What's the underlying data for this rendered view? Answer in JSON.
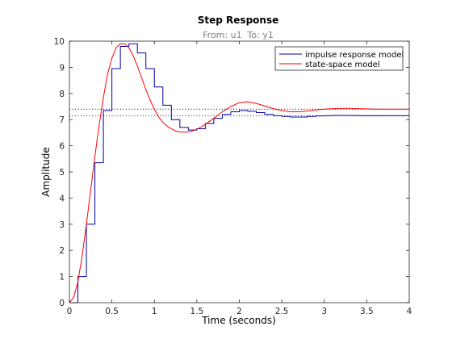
{
  "chart_data": {
    "type": "line",
    "title": "Step Response",
    "subtitle": "From: u1  To: y1",
    "xlabel": "Time (seconds)",
    "ylabel": "Amplitude",
    "xlim": [
      0,
      4
    ],
    "ylim": [
      0,
      10
    ],
    "xticks": [
      "0",
      "0.5",
      "1",
      "1.5",
      "2",
      "2.5",
      "3",
      "3.5",
      "4"
    ],
    "yticks": [
      "0",
      "1",
      "2",
      "3",
      "4",
      "5",
      "6",
      "7",
      "8",
      "9",
      "10"
    ],
    "grid": false,
    "legend_position": "top-right",
    "series": [
      {
        "name": "impulse response model",
        "color": "#0000aa",
        "style": "step",
        "x": [
          0,
          0.1,
          0.2,
          0.3,
          0.4,
          0.5,
          0.6,
          0.7,
          0.8,
          0.9,
          1.0,
          1.1,
          1.2,
          1.3,
          1.4,
          1.5,
          1.6,
          1.7,
          1.8,
          1.9,
          2.0,
          2.1,
          2.2,
          2.3,
          2.4,
          2.5,
          2.6,
          2.7,
          2.8,
          2.9,
          3.0,
          3.1,
          3.2,
          3.3,
          3.4,
          3.5,
          3.6,
          3.7,
          3.8,
          3.9,
          4.0
        ],
        "y": [
          0,
          1.0,
          3.0,
          5.35,
          7.35,
          8.95,
          9.8,
          9.9,
          9.55,
          8.95,
          8.25,
          7.55,
          7.0,
          6.7,
          6.6,
          6.65,
          6.85,
          7.05,
          7.2,
          7.3,
          7.35,
          7.32,
          7.27,
          7.2,
          7.15,
          7.12,
          7.1,
          7.1,
          7.12,
          7.14,
          7.15,
          7.16,
          7.16,
          7.16,
          7.15,
          7.15,
          7.15,
          7.15,
          7.15,
          7.15,
          7.15
        ],
        "steady_state": 7.15
      },
      {
        "name": "state-space model",
        "color": "#ff0000",
        "style": "line",
        "x": [
          0,
          0.05,
          0.1,
          0.15,
          0.2,
          0.25,
          0.3,
          0.35,
          0.4,
          0.45,
          0.5,
          0.55,
          0.6,
          0.65,
          0.7,
          0.75,
          0.8,
          0.85,
          0.9,
          0.95,
          1.0,
          1.05,
          1.1,
          1.15,
          1.2,
          1.25,
          1.3,
          1.35,
          1.4,
          1.45,
          1.5,
          1.55,
          1.6,
          1.7,
          1.8,
          1.9,
          2.0,
          2.1,
          2.2,
          2.3,
          2.4,
          2.5,
          2.6,
          2.7,
          2.8,
          2.9,
          3.0,
          3.1,
          3.2,
          3.3,
          3.4,
          3.5,
          3.6,
          3.7,
          3.8,
          3.9,
          4.0
        ],
        "y": [
          0,
          0.2,
          0.8,
          1.8,
          3.0,
          4.3,
          5.6,
          6.8,
          7.85,
          8.75,
          9.35,
          9.75,
          9.9,
          9.9,
          9.75,
          9.45,
          9.05,
          8.6,
          8.15,
          7.75,
          7.4,
          7.1,
          6.9,
          6.75,
          6.65,
          6.57,
          6.53,
          6.52,
          6.53,
          6.57,
          6.63,
          6.72,
          6.82,
          7.05,
          7.3,
          7.5,
          7.65,
          7.68,
          7.62,
          7.52,
          7.42,
          7.35,
          7.3,
          7.3,
          7.33,
          7.37,
          7.4,
          7.42,
          7.43,
          7.43,
          7.42,
          7.41,
          7.4,
          7.4,
          7.4,
          7.4,
          7.4
        ],
        "steady_state": 7.4
      }
    ]
  }
}
